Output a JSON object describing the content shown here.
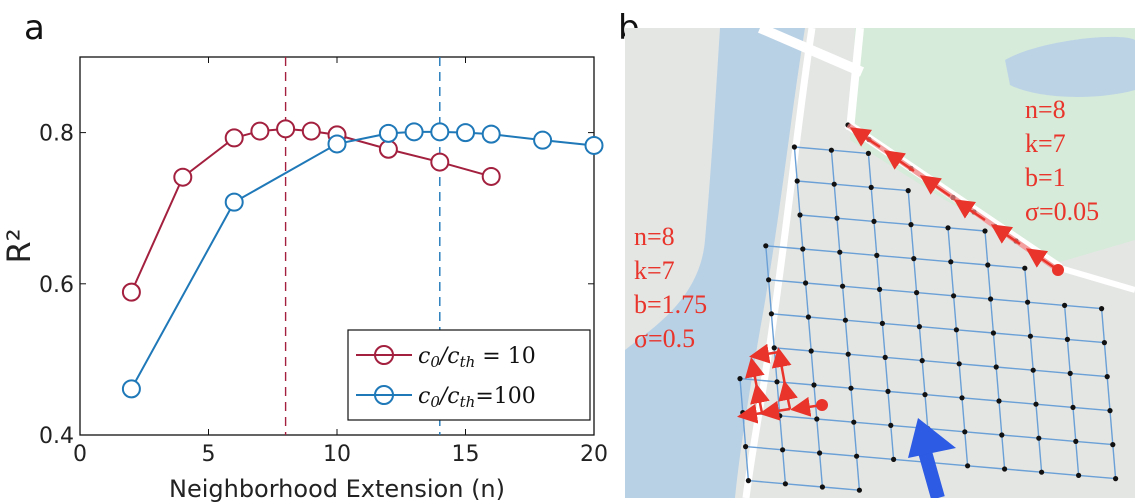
{
  "panels": {
    "a": "a",
    "b": "b"
  },
  "chart_data": {
    "type": "line",
    "xlabel": "Neighborhood Extension (n)",
    "ylabel": "R²",
    "xlim": [
      0,
      20
    ],
    "ylim": [
      0.4,
      0.9
    ],
    "xticks": [
      0,
      5,
      10,
      15,
      20
    ],
    "yticks": [
      0.4,
      0.6,
      0.8
    ],
    "grid": false,
    "legend_position": "bottom-right",
    "series": [
      {
        "name": "c0/cth = 10",
        "color": "#a3203e",
        "x": [
          2,
          4,
          6,
          7,
          8,
          9,
          10,
          12,
          14,
          16
        ],
        "y": [
          0.589,
          0.741,
          0.793,
          0.802,
          0.805,
          0.802,
          0.797,
          0.778,
          0.761,
          0.742
        ]
      },
      {
        "name": "c0/cth=100",
        "color": "#1f78b8",
        "x": [
          2,
          6,
          10,
          12,
          13,
          14,
          15,
          16,
          18,
          20
        ],
        "y": [
          0.461,
          0.708,
          0.785,
          0.799,
          0.801,
          0.801,
          0.8,
          0.798,
          0.79,
          0.783
        ]
      }
    ],
    "vlines": [
      {
        "x": 8,
        "color": "#a3203e"
      },
      {
        "x": 14,
        "color": "#1f78b8"
      }
    ]
  },
  "map": {
    "annotation_right": [
      "n=8",
      "k=7",
      "b=1",
      "σ=0.05"
    ],
    "annotation_left": [
      "n=8",
      "k=7",
      "b=1.75",
      "σ=0.5"
    ],
    "annotation_color": "#e8342b",
    "arrow_color": "#2d5be3"
  }
}
